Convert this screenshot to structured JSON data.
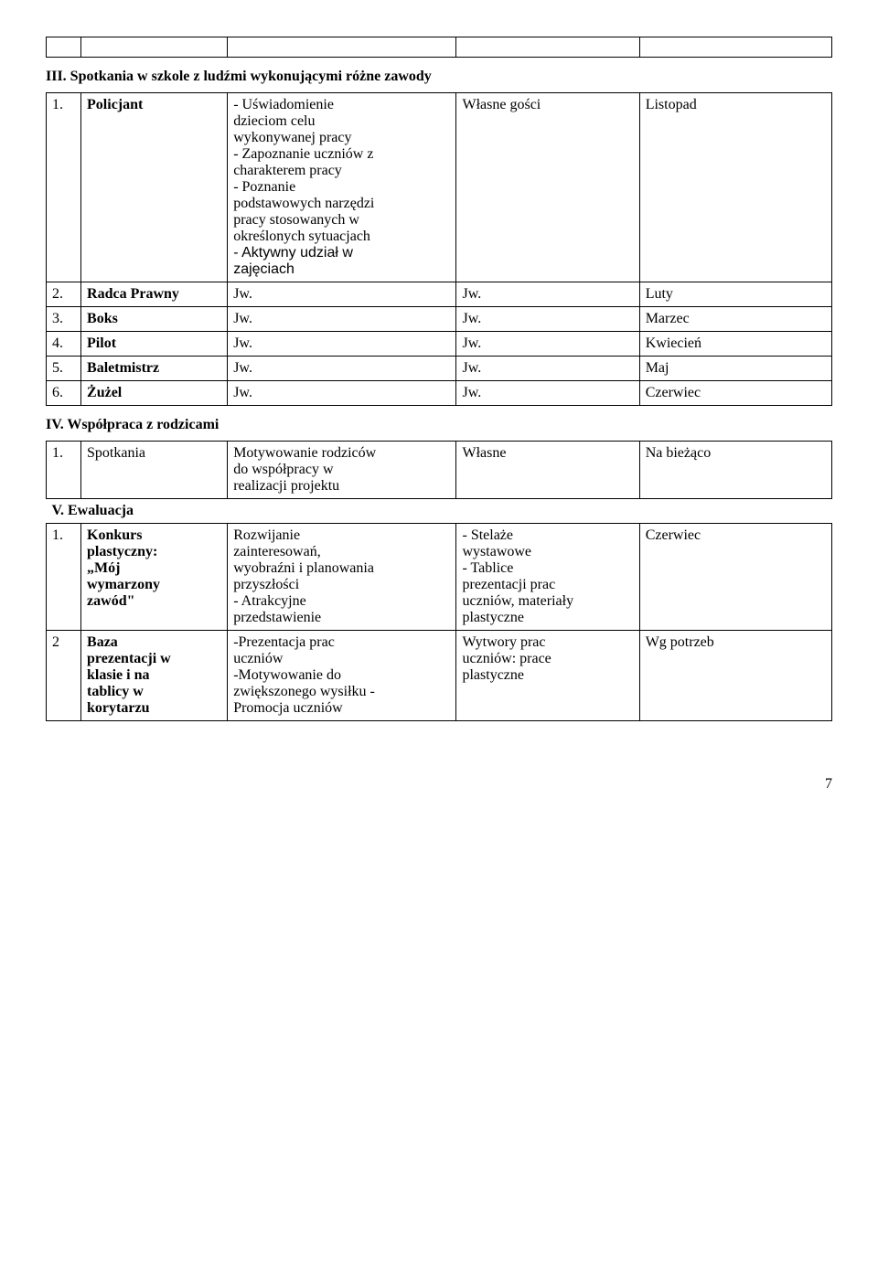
{
  "topEmptyRow": true,
  "sectionIII": {
    "title": "III. Spotkania w szkole z ludźmi wykonującymi różne zawody",
    "rows": [
      {
        "num": "1.",
        "label": "Policjant",
        "desc": "- Uświadomienie|dzieciom celu|wykonywanej pracy| - Zapoznanie uczniów z|charakterem pracy|- Poznanie|podstawowych narzędzi|pracy stosowanych w|określonych sytuacjach| - Aktywny udział w|zajęciach",
        "descArial": " - Aktywny udział w|zajęciach",
        "c4": "Własne gości",
        "c5": "Listopad"
      },
      {
        "num": "2.",
        "label": "Radca Prawny",
        "desc": "Jw.",
        "c4": "Jw.",
        "c5": "Luty"
      },
      {
        "num": "3.",
        "label": "Boks",
        "desc": "Jw.",
        "c4": "Jw.",
        "c5": "Marzec"
      },
      {
        "num": "4.",
        "label": "Pilot",
        "desc": "Jw.",
        "c4": "Jw.",
        "c5": "Kwiecień"
      },
      {
        "num": "5.",
        "label": "Baletmistrz",
        "desc": "Jw.",
        "c4": "Jw.",
        "c5": "Maj"
      },
      {
        "num": "6.",
        "label": "Żużel",
        "desc": "Jw.",
        "c4": "Jw.",
        "c5": "Czerwiec"
      }
    ]
  },
  "sectionIV": {
    "title": "IV. Współpraca z rodzicami",
    "rows": [
      {
        "num": "1.",
        "label": "Spotkania",
        "desc": "Motywowanie rodziców|do współpracy w|realizacji projektu",
        "c4": "Własne",
        "c5": "Na bieżąco"
      }
    ]
  },
  "sectionV": {
    "title": "V. Ewaluacja",
    "rows": [
      {
        "num": "1.",
        "label": "Konkurs|plastyczny:|„Mój|wymarzony|zawód\"",
        "desc": "Rozwijanie|zainteresowań,|wyobraźni i planowania|przyszłości|- Atrakcyjne|przedstawienie",
        "c4": "- Stelaże|wystawowe|- Tablice|prezentacji prac|uczniów, materiały|plastyczne",
        "c5": "Czerwiec"
      },
      {
        "num": "2",
        "label": "Baza|prezentacji w|klasie i na|tablicy w|korytarzu",
        "desc": "-Prezentacja prac|uczniów|-Motywowanie do|zwiększonego wysiłku -|Promocja uczniów",
        "c4": "Wytwory prac|uczniów: prace|plastyczne",
        "c5": "Wg potrzeb"
      }
    ]
  },
  "pageNumber": "7"
}
